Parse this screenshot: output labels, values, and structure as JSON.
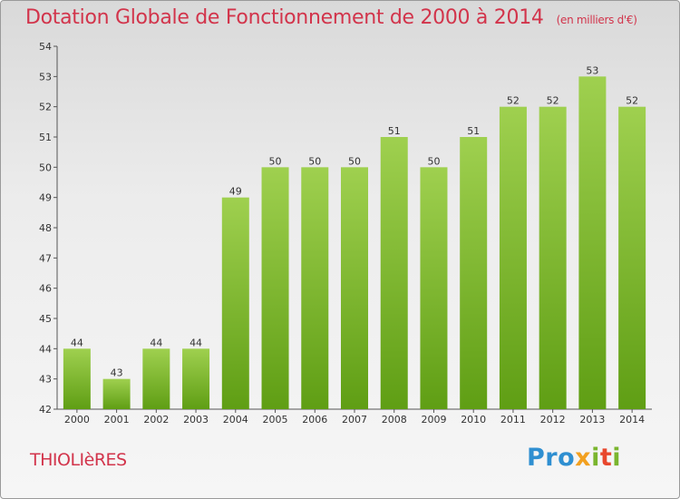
{
  "header": {
    "title": "Dotation Globale de Fonctionnement de 2000 à 2014",
    "subtitle": "(en milliers d'€)"
  },
  "footer": {
    "commune": "THIOLIèRES",
    "logo": {
      "p1": "Pro",
      "p2": "x",
      "p3": "i",
      "p4": "t",
      "p5": "i"
    }
  },
  "colors": {
    "title": "#d2344b",
    "bar_top": "#9fd04f",
    "bar_bottom": "#5f9e14"
  },
  "chart_data": {
    "type": "bar",
    "title": "Dotation Globale de Fonctionnement de 2000 à 2014",
    "subtitle": "(en milliers d'€)",
    "xlabel": "",
    "ylabel": "",
    "categories": [
      "2000",
      "2001",
      "2002",
      "2003",
      "2004",
      "2005",
      "2006",
      "2007",
      "2008",
      "2009",
      "2010",
      "2011",
      "2012",
      "2013",
      "2014"
    ],
    "values": [
      44,
      43,
      44,
      44,
      49,
      50,
      50,
      50,
      51,
      50,
      51,
      52,
      52,
      53,
      52
    ],
    "ylim": [
      42,
      54
    ],
    "yticks": [
      42,
      43,
      44,
      45,
      46,
      47,
      48,
      49,
      50,
      51,
      52,
      53,
      54
    ],
    "grid": false,
    "legend": "none"
  }
}
